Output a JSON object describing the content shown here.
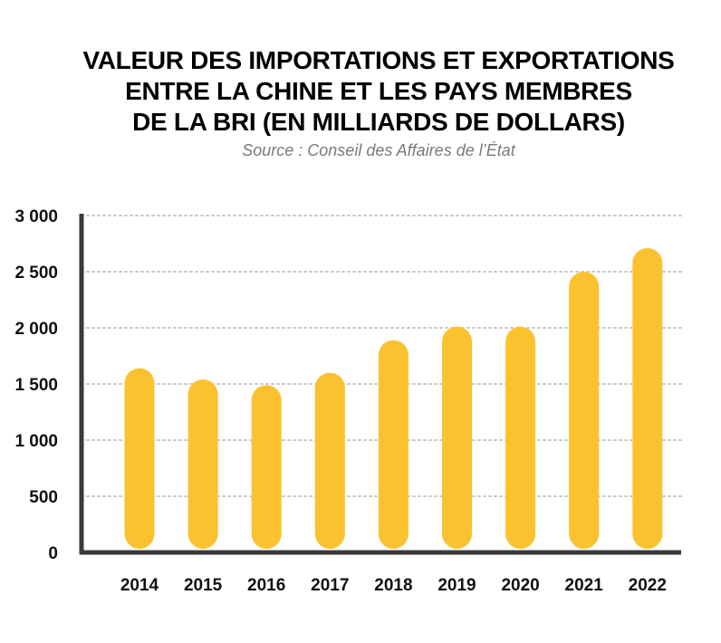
{
  "title_lines": [
    "VALEUR DES IMPORTATIONS ET EXPORTATIONS",
    "ENTRE LA CHINE ET LES PAYS MEMBRES",
    "DE LA BRI (EN MILLIARDS DE DOLLARS)"
  ],
  "source": "Source : Conseil des Affaires de l’État",
  "colors": {
    "bar": "#FBC22F",
    "axis": "#3a3a3a",
    "grid": "#c8c8c8"
  },
  "chart_data": {
    "type": "bar",
    "title": "VALEUR DES IMPORTATIONS ET EXPORTATIONS ENTRE LA CHINE ET LES PAYS MEMBRES DE LA BRI (EN MILLIARDS DE DOLLARS)",
    "categories": [
      "2014",
      "2015",
      "2016",
      "2017",
      "2018",
      "2019",
      "2020",
      "2021",
      "2022"
    ],
    "values": [
      1640,
      1540,
      1490,
      1600,
      1890,
      2010,
      2010,
      2500,
      2710
    ],
    "ylim": [
      0,
      3000
    ],
    "yticks": [
      0,
      500,
      1000,
      1500,
      2000,
      2500,
      3000
    ],
    "ytick_labels": [
      "0",
      "500",
      "1 000",
      "1 500",
      "2 000",
      "2 500",
      "3 000"
    ],
    "grid": true
  }
}
